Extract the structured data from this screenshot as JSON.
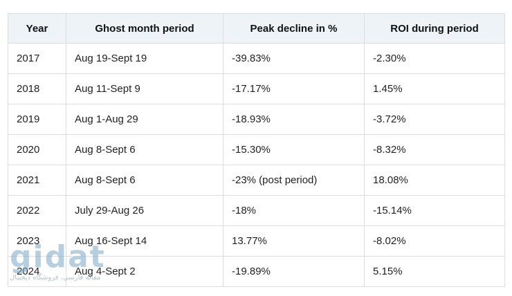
{
  "table": {
    "headers": [
      "Year",
      "Ghost month period",
      "Peak decline in %",
      "ROI during period"
    ],
    "rows": [
      [
        "2017",
        "Aug 19-Sept 19",
        "-39.83%",
        "-2.30%"
      ],
      [
        "2018",
        "Aug 11-Sept 9",
        "-17.17%",
        "1.45%"
      ],
      [
        "2019",
        "Aug 1-Aug 29",
        "-18.93%",
        "-3.72%"
      ],
      [
        "2020",
        "Aug 8-Sept 6",
        "-15.30%",
        "-8.32%"
      ],
      [
        "2021",
        "Aug 8-Sept 6",
        "-23% (post period)",
        "18.08%"
      ],
      [
        "2022",
        "July 29-Aug 26",
        "-18%",
        "-15.14%"
      ],
      [
        "2023",
        "Aug 16-Sept 14",
        "13.77%",
        "-8.02%"
      ],
      [
        "2024",
        "Aug 4-Sept 2",
        "-19.89%",
        "5.15%"
      ]
    ]
  },
  "watermark": {
    "logo_text": "gidat",
    "tagline": "مقاله فارسی، فروشگاه دیجیتال",
    "color": "#7aa7c7"
  },
  "colors": {
    "header_bg": "#eef3f7",
    "border": "#dcdcdc",
    "text": "#1f1f1f"
  }
}
